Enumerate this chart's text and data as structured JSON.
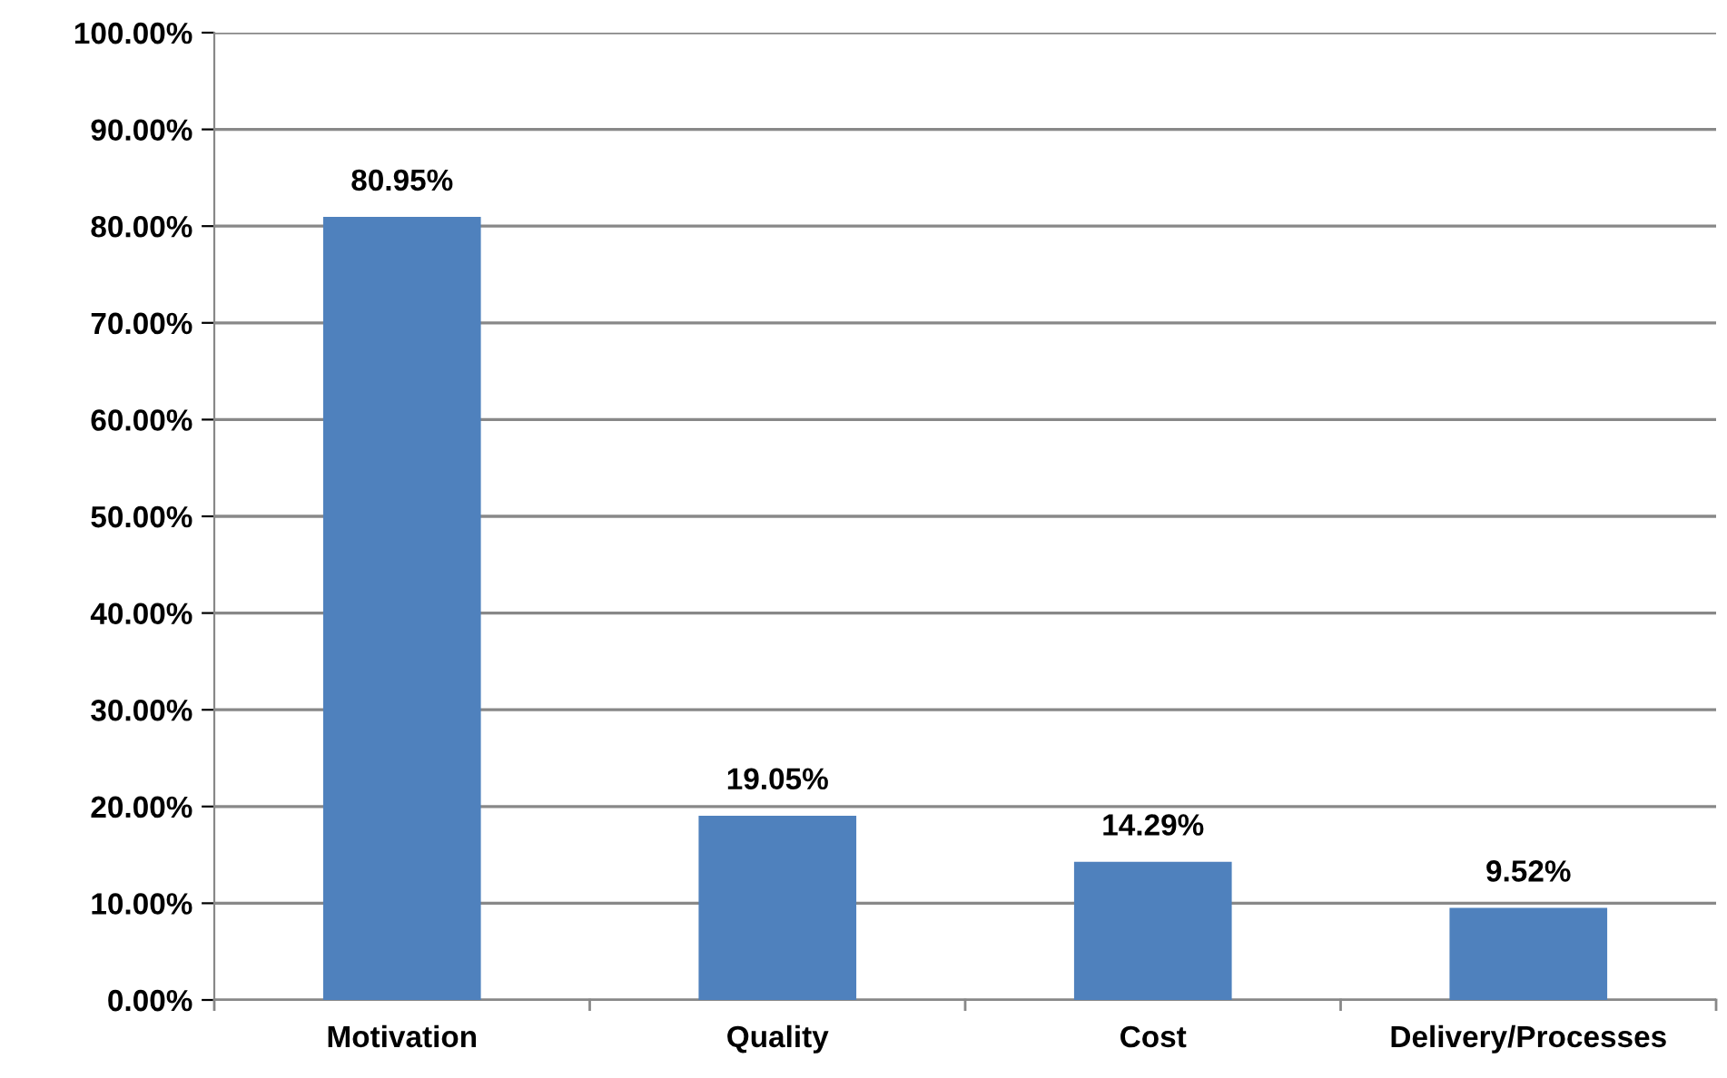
{
  "chart_data": {
    "type": "bar",
    "categories": [
      "Motivation",
      "Quality",
      "Cost",
      "Delivery/Processes"
    ],
    "values": [
      80.95,
      19.05,
      14.29,
      9.52
    ],
    "value_labels": [
      "80.95%",
      "19.05%",
      "14.29%",
      "9.52%"
    ],
    "color": "#4f81bd",
    "ylim": [
      0,
      100
    ],
    "yticks": [
      {
        "value": 0,
        "label": "0.00%"
      },
      {
        "value": 10,
        "label": "10.00%"
      },
      {
        "value": 20,
        "label": "20.00%"
      },
      {
        "value": 30,
        "label": "30.00%"
      },
      {
        "value": 40,
        "label": "40.00%"
      },
      {
        "value": 50,
        "label": "50.00%"
      },
      {
        "value": 60,
        "label": "60.00%"
      },
      {
        "value": 70,
        "label": "70.00%"
      },
      {
        "value": 80,
        "label": "80.00%"
      },
      {
        "value": 90,
        "label": "90.00%"
      },
      {
        "value": 100,
        "label": "100.00%"
      }
    ],
    "grid": "y"
  }
}
